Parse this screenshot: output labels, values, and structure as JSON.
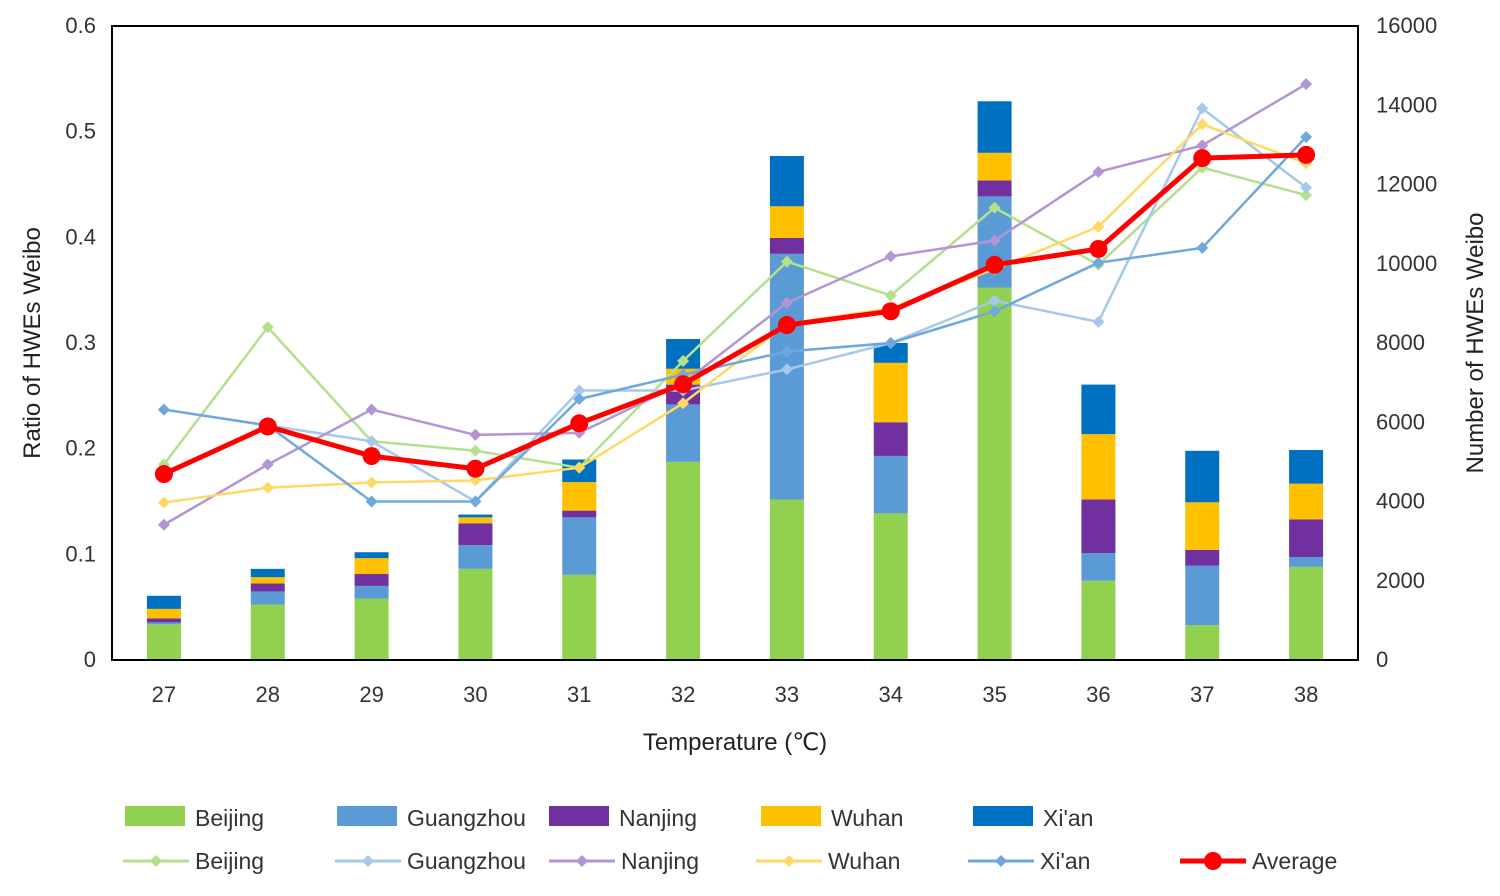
{
  "chart_data": {
    "type": "bar+line",
    "title": "",
    "xlabel": "Temperature (℃)",
    "ylabel_left": "Ratio of HWEs Weibo",
    "ylabel_right": "Number of HWEs Weibo",
    "categories": [
      "27",
      "28",
      "29",
      "30",
      "31",
      "32",
      "33",
      "34",
      "35",
      "36",
      "37",
      "38"
    ],
    "y_left": {
      "min": 0,
      "max": 0.6,
      "ticks": [
        "0",
        "0.1",
        "0.2",
        "0.3",
        "0.4",
        "0.5",
        "0.6"
      ],
      "tick_values": [
        0,
        0.1,
        0.2,
        0.3,
        0.4,
        0.5,
        0.6
      ]
    },
    "y_right": {
      "min": 0,
      "max": 16000,
      "ticks": [
        "0",
        "2000",
        "4000",
        "6000",
        "8000",
        "10000",
        "12000",
        "14000",
        "16000"
      ],
      "tick_values": [
        0,
        2000,
        4000,
        6000,
        8000,
        10000,
        12000,
        14000,
        16000
      ]
    },
    "bar_series": [
      {
        "name": "Beijing",
        "color": "#92D050",
        "values": [
          900,
          1400,
          1550,
          2300,
          2150,
          5000,
          4050,
          3700,
          9400,
          2000,
          880,
          2350
        ]
      },
      {
        "name": "Guangzhou",
        "color": "#5B9BD5",
        "values": [
          50,
          330,
          320,
          600,
          1450,
          1450,
          6200,
          1450,
          2300,
          700,
          1500,
          250
        ]
      },
      {
        "name": "Nanjing",
        "color": "#7030A0",
        "values": [
          100,
          200,
          300,
          550,
          170,
          500,
          400,
          850,
          400,
          1350,
          400,
          950
        ]
      },
      {
        "name": "Wuhan",
        "color": "#FFC000",
        "values": [
          240,
          160,
          400,
          150,
          720,
          400,
          800,
          1500,
          700,
          1650,
          1200,
          900
        ]
      },
      {
        "name": "Xi'an",
        "color": "#0070C0",
        "values": [
          330,
          210,
          150,
          70,
          570,
          750,
          1270,
          500,
          1300,
          1250,
          1300,
          850
        ]
      }
    ],
    "line_series": [
      {
        "name": "Beijing",
        "color": "#B4E08C",
        "values": [
          0.185,
          0.315,
          0.207,
          0.198,
          0.182,
          0.283,
          0.377,
          0.345,
          0.428,
          0.374,
          0.466,
          0.44
        ]
      },
      {
        "name": "Guangzhou",
        "color": "#A5C8EB",
        "values": [
          0.237,
          0.222,
          0.207,
          0.15,
          0.255,
          0.255,
          0.275,
          0.3,
          0.34,
          0.32,
          0.522,
          0.447
        ]
      },
      {
        "name": "Nanjing",
        "color": "#B394D4",
        "values": [
          0.128,
          0.185,
          0.237,
          0.213,
          0.215,
          0.262,
          0.338,
          0.382,
          0.397,
          0.462,
          0.487,
          0.545
        ]
      },
      {
        "name": "Wuhan",
        "color": "#FFD966",
        "values": [
          0.149,
          0.163,
          0.168,
          0.17,
          0.182,
          0.243,
          0.318,
          0.333,
          0.37,
          0.41,
          0.507,
          0.47
        ]
      },
      {
        "name": "Xi'an",
        "color": "#6FA8DC",
        "values": [
          0.237,
          0.222,
          0.15,
          0.15,
          0.247,
          0.27,
          0.292,
          0.3,
          0.33,
          0.376,
          0.39,
          0.495
        ]
      },
      {
        "name": "Average",
        "color": "#FF0000",
        "values": [
          0.176,
          0.221,
          0.193,
          0.181,
          0.224,
          0.261,
          0.317,
          0.33,
          0.374,
          0.389,
          0.475,
          0.478
        ]
      }
    ],
    "grid": false,
    "legend_position": "bottom"
  }
}
